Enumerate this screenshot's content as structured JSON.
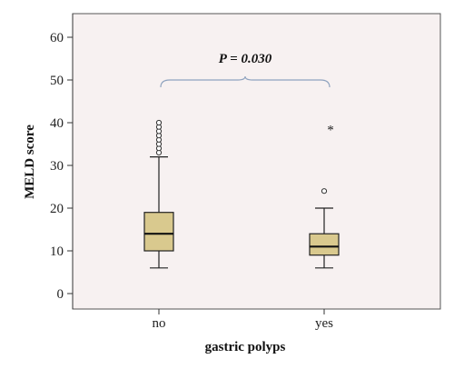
{
  "chart_data": {
    "type": "box",
    "xlabel": "gastric polyps",
    "ylabel": "MELD score",
    "ylim": [
      0,
      60
    ],
    "y_ticks": [
      0,
      10,
      20,
      30,
      40,
      50,
      60
    ],
    "categories": [
      "no",
      "yes"
    ],
    "boxes": [
      {
        "category": "no",
        "whisker_low": 6,
        "q1": 10,
        "median": 14,
        "q3": 19,
        "whisker_high": 32,
        "outliers": [
          33,
          34,
          35,
          36,
          37,
          38,
          39,
          40
        ],
        "extremes": []
      },
      {
        "category": "yes",
        "whisker_low": 6,
        "q1": 9,
        "median": 11,
        "q3": 14,
        "whisker_high": 20,
        "outliers": [
          24
        ],
        "extremes": [
          39
        ]
      }
    ],
    "annotation": "P = 0.030",
    "extreme_marker": "*",
    "grid": false,
    "colors": {
      "plot_background": "#f7f1f1",
      "box_fill": "#d9c98e",
      "box_stroke": "#222222",
      "bracket": "#8fa3bf"
    }
  }
}
